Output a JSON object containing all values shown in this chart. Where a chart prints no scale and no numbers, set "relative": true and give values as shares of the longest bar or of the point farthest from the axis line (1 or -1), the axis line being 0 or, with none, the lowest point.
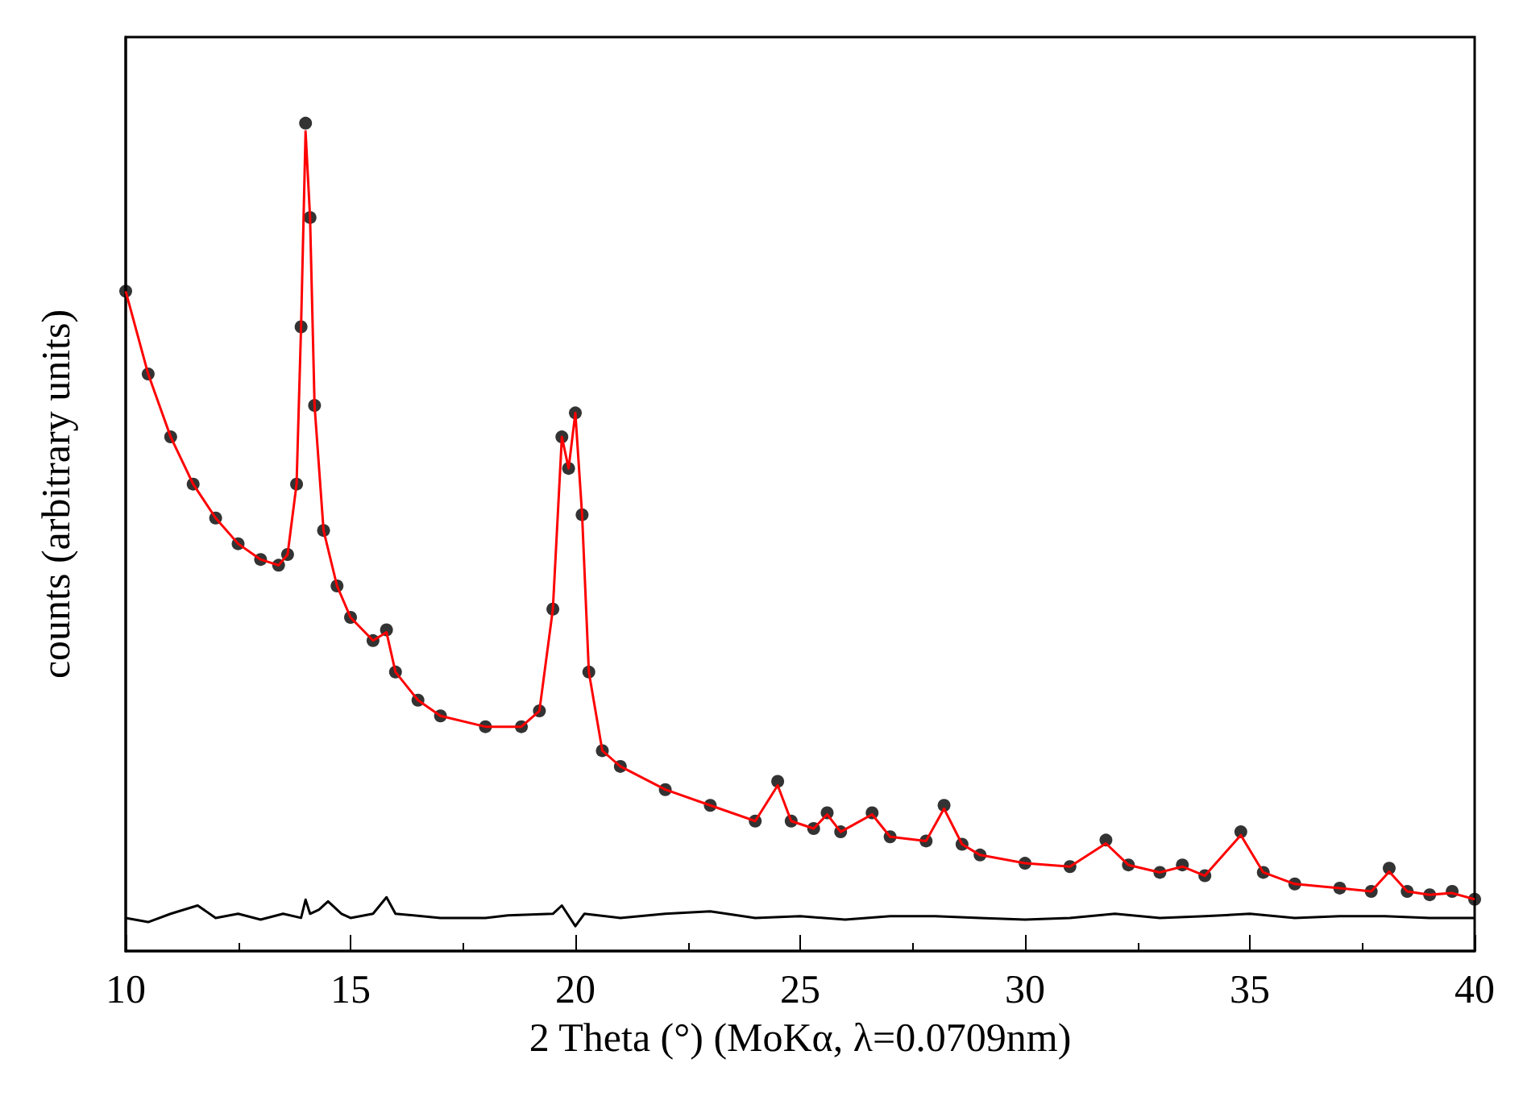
{
  "chart_data": {
    "type": "scatter",
    "relative": true,
    "xlabel": "2 Theta (°) (MoKα, λ=0.0709nm)",
    "ylabel": "counts (arbitrary units)",
    "xlim": [
      10,
      40
    ],
    "xticks": [
      10,
      15,
      20,
      25,
      30,
      35,
      40
    ],
    "grid": false,
    "x": [
      10,
      10.5,
      11,
      11.5,
      12,
      12.5,
      13,
      13.4,
      13.6,
      13.8,
      13.9,
      14,
      14.1,
      14.2,
      14.4,
      14.7,
      15,
      15.5,
      15.8,
      16,
      16.5,
      17,
      18,
      18.8,
      19.2,
      19.5,
      19.7,
      19.85,
      20,
      20.15,
      20.3,
      20.6,
      21,
      22,
      23,
      24,
      24.5,
      24.8,
      25.3,
      25.6,
      25.9,
      26.6,
      27,
      27.8,
      28.2,
      28.6,
      29,
      30,
      31,
      31.8,
      32.3,
      33,
      33.5,
      34,
      34.8,
      35.3,
      36,
      37,
      37.7,
      38.1,
      38.5,
      39,
      39.5,
      40
    ],
    "series": [
      {
        "color": "#000000",
        "marker": "circle",
        "values": [
          0.797,
          0.697,
          0.621,
          0.564,
          0.523,
          0.492,
          0.473,
          0.466,
          0.479,
          0.564,
          0.754,
          1.0,
          0.886,
          0.659,
          0.508,
          0.441,
          0.403,
          0.375,
          0.388,
          0.337,
          0.303,
          0.284,
          0.271,
          0.271,
          0.29,
          0.413,
          0.621,
          0.583,
          0.65,
          0.527,
          0.337,
          0.242,
          0.223,
          0.195,
          0.176,
          0.157,
          0.205,
          0.157,
          0.148,
          0.167,
          0.144,
          0.167,
          0.138,
          0.133,
          0.176,
          0.129,
          0.116,
          0.106,
          0.102,
          0.134,
          0.104,
          0.095,
          0.104,
          0.091,
          0.144,
          0.095,
          0.081,
          0.076,
          0.072,
          0.1,
          0.072,
          0.068,
          0.072,
          0.0625
        ]
      },
      {
        "type": "line",
        "color": "#ff0000",
        "marker": "none",
        "values": [
          0.797,
          0.697,
          0.621,
          0.564,
          0.523,
          0.492,
          0.473,
          0.466,
          0.479,
          0.564,
          0.754,
          0.99,
          0.886,
          0.659,
          0.508,
          0.441,
          0.403,
          0.375,
          0.385,
          0.337,
          0.303,
          0.284,
          0.271,
          0.271,
          0.29,
          0.413,
          0.621,
          0.583,
          0.65,
          0.527,
          0.337,
          0.242,
          0.223,
          0.195,
          0.176,
          0.157,
          0.2,
          0.157,
          0.148,
          0.165,
          0.144,
          0.165,
          0.138,
          0.133,
          0.172,
          0.129,
          0.116,
          0.106,
          0.102,
          0.13,
          0.104,
          0.095,
          0.102,
          0.091,
          0.14,
          0.095,
          0.081,
          0.076,
          0.072,
          0.096,
          0.072,
          0.068,
          0.07,
          0.0625
        ]
      },
      {
        "type": "line",
        "color": "#000000",
        "marker": "none",
        "x": [
          10,
          10.5,
          11,
          11.6,
          12,
          12.5,
          13,
          13.5,
          13.9,
          14,
          14.1,
          14.3,
          14.5,
          14.8,
          15,
          15.5,
          15.8,
          16,
          17,
          18,
          18.5,
          19.5,
          19.7,
          20,
          20.2,
          21,
          22,
          23,
          24,
          25,
          26,
          27,
          28,
          29,
          30,
          31,
          32,
          33,
          34,
          35,
          36,
          37,
          38,
          39,
          40
        ],
        "values": [
          0.04,
          0.035,
          0.045,
          0.055,
          0.04,
          0.045,
          0.038,
          0.045,
          0.04,
          0.062,
          0.045,
          0.05,
          0.06,
          0.045,
          0.04,
          0.045,
          0.065,
          0.045,
          0.04,
          0.04,
          0.043,
          0.045,
          0.055,
          0.03,
          0.045,
          0.04,
          0.045,
          0.048,
          0.04,
          0.042,
          0.038,
          0.042,
          0.042,
          0.04,
          0.038,
          0.04,
          0.045,
          0.04,
          0.042,
          0.045,
          0.04,
          0.042,
          0.042,
          0.04,
          0.04
        ]
      }
    ]
  }
}
